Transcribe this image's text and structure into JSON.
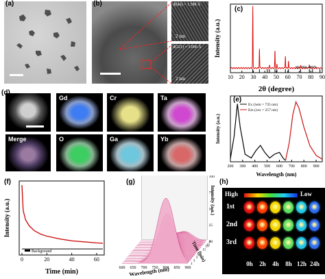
{
  "panels": {
    "a": {
      "label": "(a)"
    },
    "b": {
      "label": "(b)",
      "scale_main": "",
      "d_top": "d(hkl) = 1.588 Å",
      "d_bottom": "d(221) = 3.066 Å",
      "scale_top": "2 nm",
      "scale_bottom": "2 nm"
    },
    "c": {
      "label": "(c)",
      "ylabel": "Intensity (a.u.)",
      "xlabel": "2θ (degree)",
      "ref_code": "00-056-0876"
    },
    "d": {
      "label": "(d)",
      "maps": [
        "Gd",
        "Cr",
        "Ta",
        "Merge",
        "O",
        "Ga",
        "Yb"
      ]
    },
    "e": {
      "label": "(e)",
      "ylabel": "Intensity (a.u.)",
      "xlabel": "Wavelength (nm)",
      "legend_ex": "Ex (λem = 735 nm)",
      "legend_em": "Em (λex = 257 nm)"
    },
    "f": {
      "label": "(f)",
      "ylabel": "Intensity (a.u.)",
      "xlabel": "Time (min)",
      "legend_bg": "Background"
    },
    "g": {
      "label": "(g)",
      "xlabel": "Wavelength (nm)",
      "ylabel": "Intensity (a.u.)",
      "zlabel": "Time (min)"
    },
    "h": {
      "label": "(h)",
      "high": "High",
      "low": "Low",
      "rows": [
        "1st",
        "2nd",
        "3rd"
      ],
      "cols": [
        "0h",
        "2h",
        "4h",
        "8h",
        "12h",
        "24h"
      ]
    }
  },
  "chart_data": [
    {
      "type": "line",
      "panel": "c",
      "xlim": [
        10,
        90
      ],
      "xticks": [
        10,
        20,
        30,
        40,
        50,
        60,
        70,
        80,
        90
      ],
      "peaks": [
        [
          29.5,
          1.0
        ],
        [
          35.3,
          0.32
        ],
        [
          48.8,
          0.27
        ],
        [
          57.9,
          0.2
        ],
        [
          60.6,
          0.12
        ],
        [
          50.5,
          0.06
        ],
        [
          44.0,
          0.05
        ],
        [
          71.2,
          0.04
        ],
        [
          78.8,
          0.06
        ]
      ],
      "ref_lines": [
        29.5,
        35.3,
        42.2,
        44.0,
        48.8,
        50.5,
        57.9,
        60.6,
        71.2,
        78.8,
        81.5,
        88.0
      ]
    },
    {
      "type": "line",
      "panel": "e",
      "xlim": [
        200,
        950
      ],
      "xticks": [
        200,
        300,
        400,
        500,
        600,
        700,
        800,
        900
      ],
      "series": [
        {
          "name": "Ex (λem = 735 nm)",
          "color": "#000000",
          "points": [
            [
              200,
              0.05
            ],
            [
              230,
              0.4
            ],
            [
              257,
              0.92
            ],
            [
              280,
              0.55
            ],
            [
              320,
              0.12
            ],
            [
              370,
              0.06
            ],
            [
              410,
              0.18
            ],
            [
              445,
              0.26
            ],
            [
              480,
              0.15
            ],
            [
              520,
              0.06
            ],
            [
              560,
              0.12
            ],
            [
              600,
              0.15
            ],
            [
              630,
              0.06
            ],
            [
              650,
              0.02
            ]
          ]
        },
        {
          "name": "Em (λex = 257 nm)",
          "color": "#cc1010",
          "points": [
            [
              650,
              0.02
            ],
            [
              680,
              0.3
            ],
            [
              710,
              0.75
            ],
            [
              735,
              0.95
            ],
            [
              760,
              0.85
            ],
            [
              800,
              0.55
            ],
            [
              850,
              0.25
            ],
            [
              900,
              0.1
            ],
            [
              950,
              0.04
            ]
          ]
        }
      ]
    },
    {
      "type": "line",
      "panel": "f",
      "xlim": [
        0,
        65
      ],
      "xticks": [
        0,
        20,
        40,
        60
      ],
      "series": [
        {
          "name": "",
          "color": "#cc1010",
          "points": [
            [
              0,
              1.0
            ],
            [
              1,
              0.62
            ],
            [
              3,
              0.48
            ],
            [
              6,
              0.39
            ],
            [
              10,
              0.32
            ],
            [
              15,
              0.27
            ],
            [
              20,
              0.24
            ],
            [
              30,
              0.2
            ],
            [
              40,
              0.17
            ],
            [
              50,
              0.155
            ],
            [
              60,
              0.14
            ],
            [
              65,
              0.135
            ]
          ]
        },
        {
          "name": "Background",
          "color": "#000000",
          "points": [
            [
              0,
              0.05
            ],
            [
              65,
              0.05
            ]
          ]
        }
      ]
    },
    {
      "type": "area",
      "panel": "g",
      "xticks": [
        600,
        650,
        700,
        750,
        800,
        850,
        900
      ],
      "zticks": [
        1,
        3,
        5,
        7,
        9,
        11,
        13,
        15,
        60
      ],
      "yticks": [
        0,
        25,
        50,
        75,
        100
      ],
      "peak_nm": 800,
      "peak_heights": [
        100,
        74,
        58,
        48,
        42,
        37,
        33,
        30,
        27,
        25,
        23,
        21,
        19,
        17,
        15
      ]
    }
  ],
  "heatmap": {
    "rows": [
      [
        "#e51010",
        "#ff3c00",
        "#f4d800",
        "#5cde60",
        "#22c8e8",
        "#2c6cf0"
      ],
      [
        "#e51010",
        "#ff4800",
        "#f2d400",
        "#5cde60",
        "#24c4e8",
        "#2e68f0"
      ],
      [
        "#e51010",
        "#ff4400",
        "#f0d000",
        "#60dc60",
        "#26c4e8",
        "#3070f0"
      ]
    ]
  }
}
